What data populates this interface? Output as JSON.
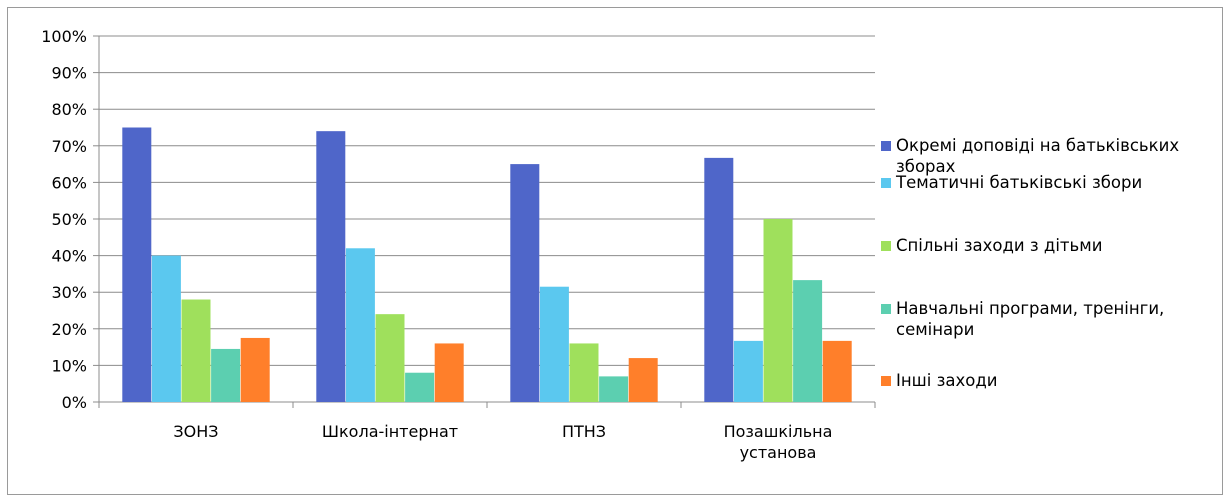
{
  "chart_data": {
    "type": "bar",
    "categories": [
      [
        "ЗОНЗ"
      ],
      [
        "Школа-інтернат"
      ],
      [
        "ПТНЗ"
      ],
      [
        "Позашкільна",
        "установа"
      ]
    ],
    "y_ticks": [
      "0%",
      "10%",
      "20%",
      "30%",
      "40%",
      "50%",
      "60%",
      "70%",
      "80%",
      "90%",
      "100%"
    ],
    "ylim": [
      0,
      100
    ],
    "grid": true,
    "legend_position": "right",
    "series": [
      {
        "name": [
          "Окремі доповіді на батьківських",
          "зборах"
        ],
        "color": "#4f66c9",
        "values": [
          75,
          74,
          65,
          66.7
        ]
      },
      {
        "name": [
          "Тематичні батьківські збори"
        ],
        "color": "#5bc8ef",
        "values": [
          40,
          42,
          31.5,
          16.7
        ]
      },
      {
        "name": [
          "Спільні заходи з дітьми"
        ],
        "color": "#9fe05c",
        "values": [
          28,
          24,
          16,
          50
        ]
      },
      {
        "name": [
          "Навчальні програми, тренінги,",
          "семінари"
        ],
        "color": "#5ccfb0",
        "values": [
          14.5,
          8,
          7,
          33.3
        ]
      },
      {
        "name": [
          "Інші заходи"
        ],
        "color": "#ff7f2a",
        "values": [
          17.5,
          16,
          12,
          16.7
        ]
      }
    ]
  }
}
